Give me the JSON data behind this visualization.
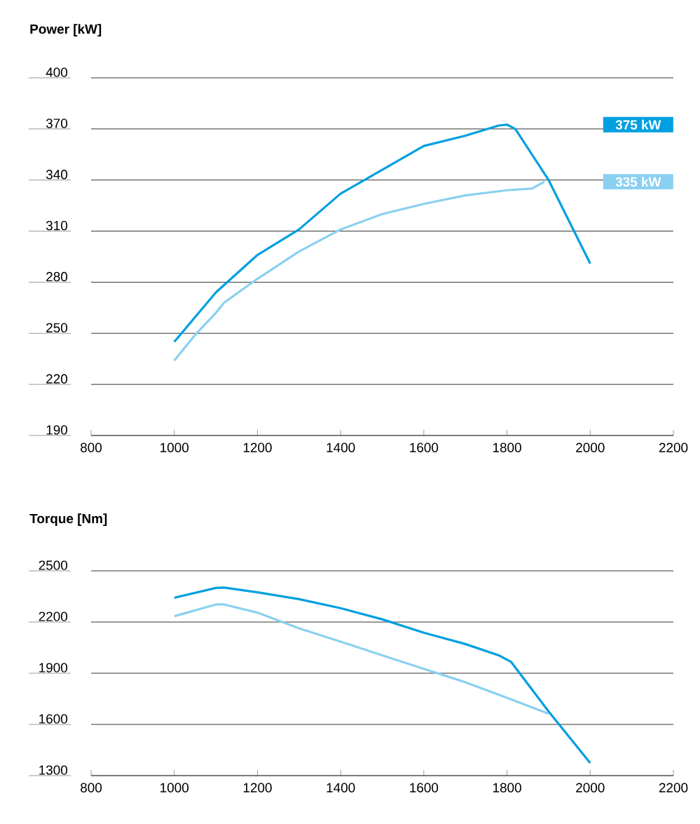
{
  "chart_data": [
    {
      "type": "line",
      "title": "Power [kW]",
      "xlim": [
        800,
        2200
      ],
      "xticks": [
        800,
        1000,
        1200,
        1400,
        1600,
        1800,
        2000,
        2200
      ],
      "ylim": [
        190,
        400
      ],
      "yticks": [
        190,
        220,
        250,
        280,
        310,
        340,
        370,
        400
      ],
      "grid": "y",
      "legend": "right",
      "series": [
        {
          "name": "375 kW",
          "color": "#009fe0",
          "x": [
            1000,
            1100,
            1200,
            1300,
            1400,
            1500,
            1600,
            1700,
            1780,
            1800,
            1820,
            1900,
            2000
          ],
          "values": [
            245,
            274,
            296,
            311,
            332,
            346,
            360,
            366,
            372,
            372.5,
            370,
            340,
            291
          ]
        },
        {
          "name": "335 kW",
          "color": "#8ad0f0",
          "x": [
            1000,
            1050,
            1100,
            1120,
            1200,
            1300,
            1400,
            1500,
            1600,
            1700,
            1800,
            1860,
            1890
          ],
          "values": [
            234,
            249,
            262,
            268,
            282,
            298,
            311,
            320,
            326,
            331,
            334,
            335,
            339
          ]
        }
      ]
    },
    {
      "type": "line",
      "title": "Torque [Nm]",
      "xlim": [
        800,
        2200
      ],
      "xticks": [
        800,
        1000,
        1200,
        1400,
        1600,
        1800,
        2000,
        2200
      ],
      "ylim": [
        1300,
        2500
      ],
      "yticks": [
        1300,
        1600,
        1900,
        2200,
        2500
      ],
      "grid": "y",
      "series": [
        {
          "color": "#009fe0",
          "x": [
            1000,
            1100,
            1120,
            1200,
            1300,
            1400,
            1500,
            1600,
            1700,
            1780,
            1810,
            1900,
            2000
          ],
          "values": [
            2342,
            2400,
            2402,
            2374,
            2334,
            2281,
            2216,
            2137,
            2071,
            2005,
            1966,
            1676,
            1374
          ]
        },
        {
          "color": "#8ad0f0",
          "x": [
            1000,
            1100,
            1120,
            1200,
            1300,
            1400,
            1500,
            1600,
            1700,
            1800,
            1900
          ],
          "values": [
            2234,
            2303,
            2303,
            2255,
            2163,
            2085,
            2005,
            1926,
            1847,
            1756,
            1663
          ]
        }
      ]
    }
  ]
}
